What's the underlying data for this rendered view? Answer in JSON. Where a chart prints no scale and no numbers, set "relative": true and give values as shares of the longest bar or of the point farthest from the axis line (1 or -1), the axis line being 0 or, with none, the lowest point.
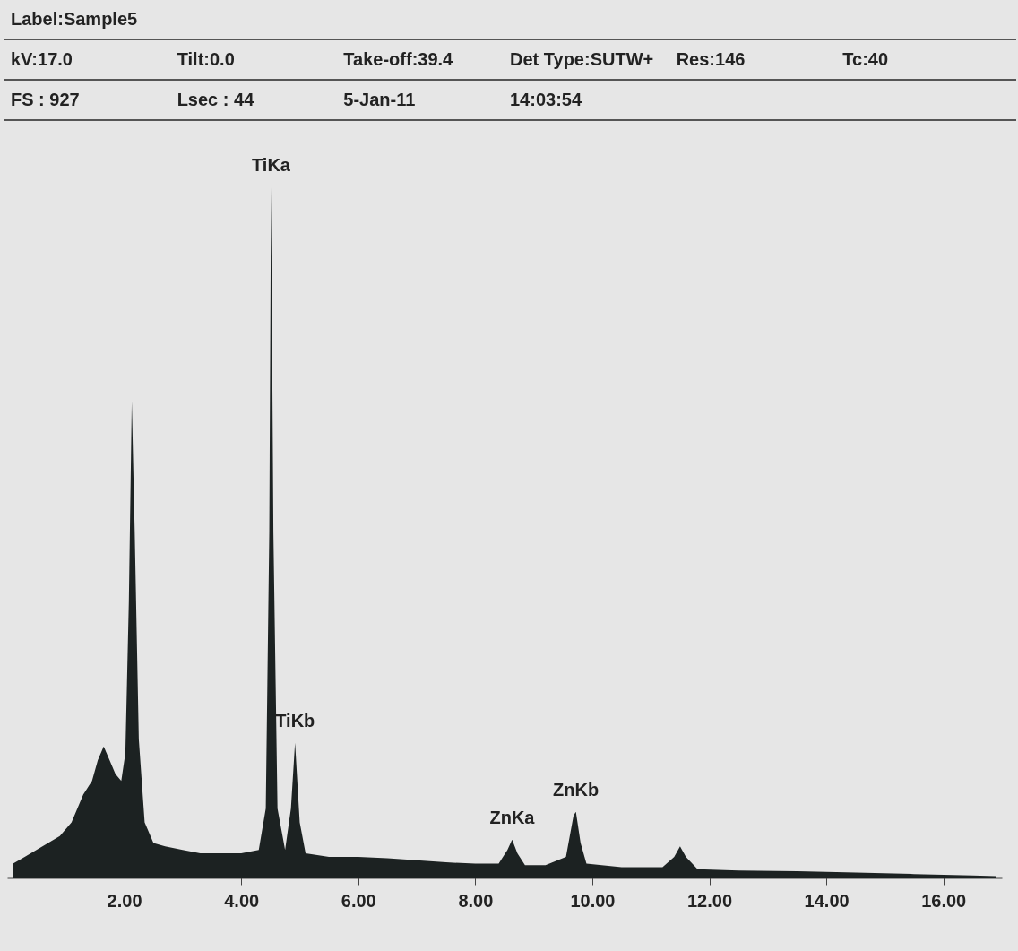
{
  "chart_data": {
    "type": "area",
    "title": "Label:Sample5",
    "relative": true,
    "annotations": [
      "kV:17.0",
      "Tilt:0.0",
      "Take-off:39.4",
      "Det Type:SUTW+",
      "Res:146",
      "Tc:40",
      "FS : 927",
      "Lsec : 44",
      "5-Jan-11",
      "14:03:54",
      {
        "text": "TiKa",
        "x": 4.51,
        "y": 1.0
      },
      {
        "text": "TiKb",
        "x": 4.92,
        "y": 0.195
      },
      {
        "text": "ZnKa",
        "x": 8.63,
        "y": 0.055
      },
      {
        "text": "ZnKb",
        "x": 9.72,
        "y": 0.095
      }
    ],
    "x": [
      0.1,
      0.3,
      0.5,
      0.7,
      0.9,
      1.1,
      1.3,
      1.45,
      1.55,
      1.65,
      1.75,
      1.85,
      1.95,
      2.02,
      2.08,
      2.13,
      2.18,
      2.25,
      2.35,
      2.5,
      2.7,
      3.0,
      3.3,
      3.6,
      4.0,
      4.3,
      4.42,
      4.48,
      4.51,
      4.55,
      4.62,
      4.75,
      4.85,
      4.92,
      5.0,
      5.1,
      5.5,
      6.0,
      6.5,
      7.0,
      7.5,
      8.0,
      8.4,
      8.55,
      8.63,
      8.72,
      8.85,
      9.2,
      9.55,
      9.68,
      9.72,
      9.8,
      9.9,
      10.5,
      11.2,
      11.4,
      11.5,
      11.6,
      11.8,
      12.5,
      13.5,
      14.5,
      15.5,
      16.5,
      16.9
    ],
    "series": [
      {
        "color": "#1c2222",
        "values": [
          0.02,
          0.03,
          0.04,
          0.05,
          0.06,
          0.08,
          0.12,
          0.14,
          0.17,
          0.19,
          0.17,
          0.15,
          0.14,
          0.18,
          0.4,
          0.69,
          0.5,
          0.2,
          0.08,
          0.05,
          0.045,
          0.04,
          0.035,
          0.035,
          0.035,
          0.04,
          0.1,
          0.5,
          1.0,
          0.5,
          0.1,
          0.04,
          0.1,
          0.195,
          0.08,
          0.035,
          0.03,
          0.03,
          0.028,
          0.025,
          0.022,
          0.02,
          0.02,
          0.04,
          0.055,
          0.035,
          0.018,
          0.018,
          0.03,
          0.09,
          0.095,
          0.05,
          0.02,
          0.015,
          0.015,
          0.03,
          0.045,
          0.03,
          0.012,
          0.01,
          0.009,
          0.007,
          0.005,
          0.003,
          0.002
        ]
      }
    ],
    "xlim": [
      0,
      17
    ],
    "xticks": [
      {
        "value": 2,
        "label": "2.00"
      },
      {
        "value": 4,
        "label": "4.00"
      },
      {
        "value": 6,
        "label": "6.00"
      },
      {
        "value": 8,
        "label": "8.00"
      },
      {
        "value": 10,
        "label": "10.00"
      },
      {
        "value": 12,
        "label": "12.00"
      },
      {
        "value": 14,
        "label": "14.00"
      },
      {
        "value": 16,
        "label": "16.00"
      }
    ]
  }
}
